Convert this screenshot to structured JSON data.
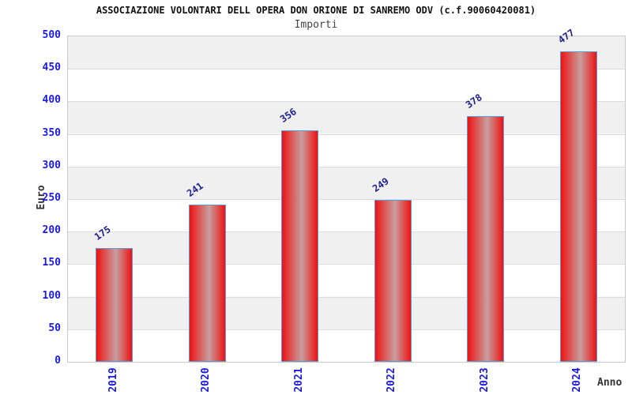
{
  "chart_data": {
    "type": "bar",
    "title": "ASSOCIAZIONE VOLONTARI DELL OPERA DON ORIONE DI SANREMO ODV (c.f.90060420081)",
    "subtitle": "Importi",
    "xlabel": "Anno",
    "ylabel": "Euro",
    "categories": [
      "2019",
      "2020",
      "2021",
      "2022",
      "2023",
      "2024"
    ],
    "values": [
      175,
      241,
      356,
      249,
      378,
      477
    ],
    "ylim": [
      0,
      500
    ],
    "ytick_step": 50,
    "grid": "horizontal-bands",
    "legend": null,
    "colors": {
      "bar_fill_edge": "#ee1212",
      "bar_fill_center": "#c89e9e",
      "bar_border": "#5b9bd5",
      "axis_tick_label": "#1a1ae0",
      "value_label": "#1f1f8c",
      "band_gray": "#f0f0f0",
      "band_white": "#ffffff",
      "gridline": "#dcdcdc",
      "plot_border": "#c9c9c9",
      "title_color": "#111111",
      "subtitle_color": "#444444",
      "axis_title_color": "#333333"
    }
  }
}
